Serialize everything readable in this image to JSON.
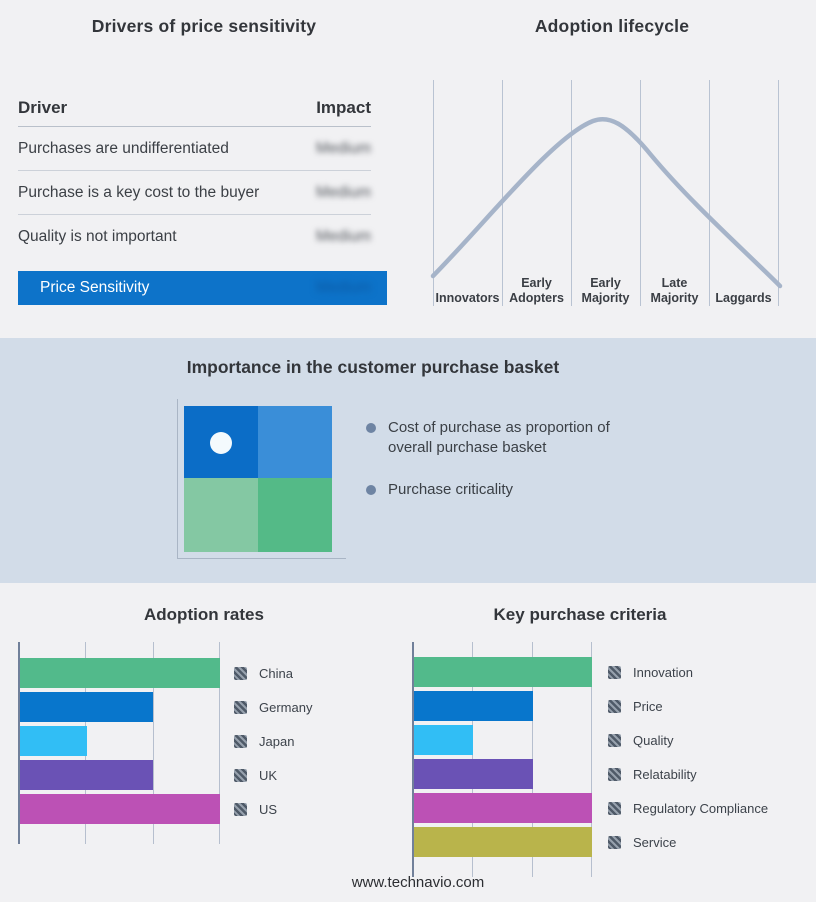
{
  "drivers_panel": {
    "title": "Drivers of price sensitivity",
    "col_driver": "Driver",
    "col_impact": "Impact",
    "rows": [
      {
        "driver": "Purchases are undifferentiated",
        "impact": "Medium"
      },
      {
        "driver": "Purchase is a key cost to the buyer",
        "impact": "Medium"
      },
      {
        "driver": "Quality is not important",
        "impact": "Medium"
      }
    ],
    "highlight_row": {
      "driver": "Price Sensitivity",
      "impact": "Medium"
    },
    "impact_values_blurred": true,
    "highlight_color": "#0d73c9"
  },
  "lifecycle_panel": {
    "title": "Adoption lifecycle",
    "stages": [
      "Innovators",
      "Early Adopters",
      "Early Majority",
      "Late Majority",
      "Laggards"
    ],
    "curve_color": "#a6b4c9",
    "gridline_color": "#b9c3d2"
  },
  "basket_band": {
    "title": "Importance in the customer purchase basket",
    "bullets": [
      "Cost of purchase as proportion of overall purchase basket",
      "Purchase criticality"
    ],
    "background": "#d2dce8",
    "quadrant_colors": {
      "top_left": "#0b6dc7",
      "top_right": "#3a8ed8",
      "bottom_left": "#84c8a3",
      "bottom_right": "#54ba87",
      "marker_dot": "#f4fafd"
    },
    "marker_position": "top-left quadrant"
  },
  "chart_data": [
    {
      "type": "line",
      "title": "Adoption lifecycle",
      "categories": [
        "Innovators",
        "Early Adopters",
        "Early Majority",
        "Late Majority",
        "Laggards"
      ],
      "points_normalized": [
        {
          "x": 0.0,
          "y": 0.06
        },
        {
          "x": 1.0,
          "y": 0.47
        },
        {
          "x": 2.0,
          "y": 0.88
        },
        {
          "x": 2.4,
          "y": 1.0
        },
        {
          "x": 3.0,
          "y": 0.8
        },
        {
          "x": 4.0,
          "y": 0.38
        },
        {
          "x": 5.0,
          "y": 0.0
        }
      ],
      "peak_stage": "Early Majority",
      "grid": "vertical-only",
      "legend_position": "none"
    },
    {
      "type": "bar",
      "title": "Adoption rates",
      "orientation": "horizontal",
      "categories": [
        "China",
        "Germany",
        "Japan",
        "UK",
        "US"
      ],
      "values": [
        3,
        2,
        1,
        2,
        3
      ],
      "xlim": [
        0,
        3
      ],
      "colors": [
        "#52ba8b",
        "#0876cc",
        "#31bef5",
        "#6a52b5",
        "#bc51b5"
      ],
      "grid": "vertical-only",
      "legend_position": "right",
      "legend_swatch": "hatched-gray"
    },
    {
      "type": "bar",
      "title": "Key purchase criteria",
      "orientation": "horizontal",
      "categories": [
        "Innovation",
        "Price",
        "Quality",
        "Relatability",
        "Regulatory Compliance",
        "Service"
      ],
      "values": [
        3,
        2,
        1,
        2,
        3,
        3
      ],
      "xlim": [
        0,
        3
      ],
      "colors": [
        "#52ba8b",
        "#0876cc",
        "#31bef5",
        "#6a52b5",
        "#bc51b5",
        "#b9b44b"
      ],
      "grid": "vertical-only",
      "legend_position": "right",
      "legend_swatch": "hatched-gray"
    }
  ],
  "page": {
    "footer": "www.technavio.com"
  }
}
